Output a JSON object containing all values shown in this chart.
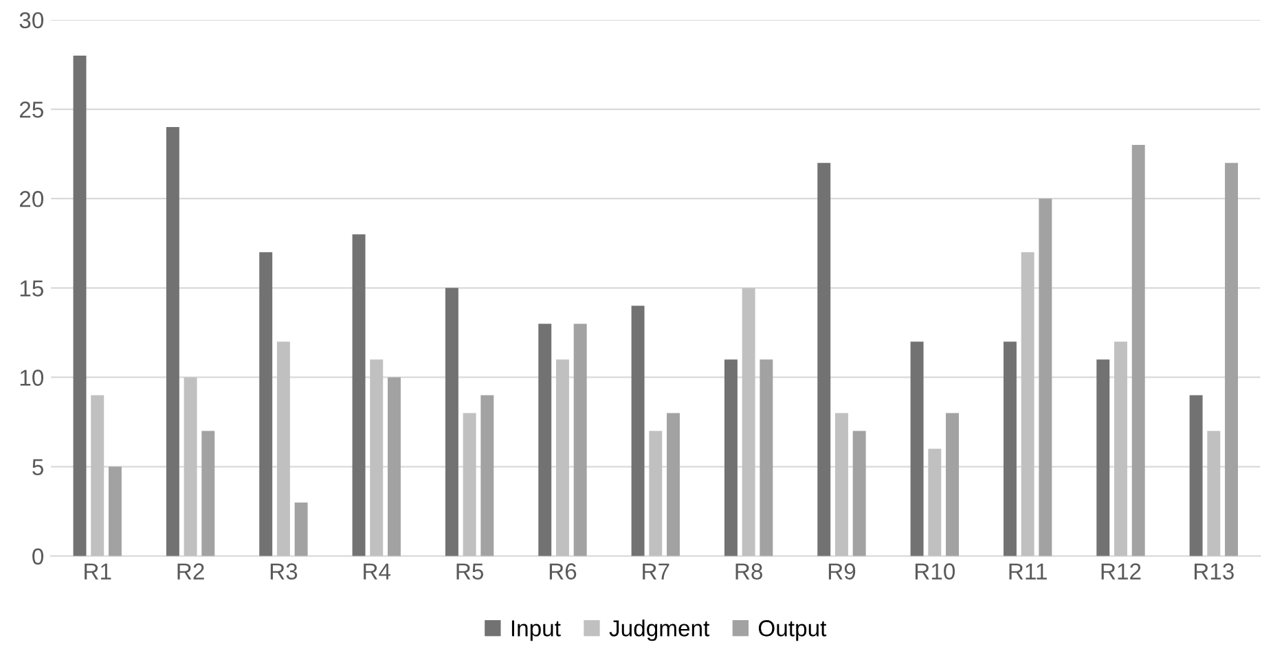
{
  "chart_data": {
    "type": "bar",
    "categories": [
      "R1",
      "R2",
      "R3",
      "R4",
      "R5",
      "R6",
      "R7",
      "R8",
      "R9",
      "R10",
      "R11",
      "R12",
      "R13"
    ],
    "series": [
      {
        "name": "Input",
        "color": "#727272",
        "values": [
          28,
          24,
          17,
          18,
          15,
          13,
          14,
          11,
          22,
          12,
          12,
          11,
          9
        ]
      },
      {
        "name": "Judgment",
        "color": "#c0c0c0",
        "values": [
          9,
          10,
          12,
          11,
          8,
          11,
          7,
          15,
          8,
          6,
          17,
          12,
          7
        ]
      },
      {
        "name": "Output",
        "color": "#a2a2a2",
        "values": [
          5,
          7,
          3,
          10,
          9,
          13,
          8,
          11,
          7,
          8,
          20,
          23,
          22
        ]
      }
    ],
    "ylim": [
      0,
      30
    ],
    "yticks": [
      0,
      5,
      10,
      15,
      20,
      25,
      30
    ],
    "grid": "y",
    "legend": "bottom"
  }
}
